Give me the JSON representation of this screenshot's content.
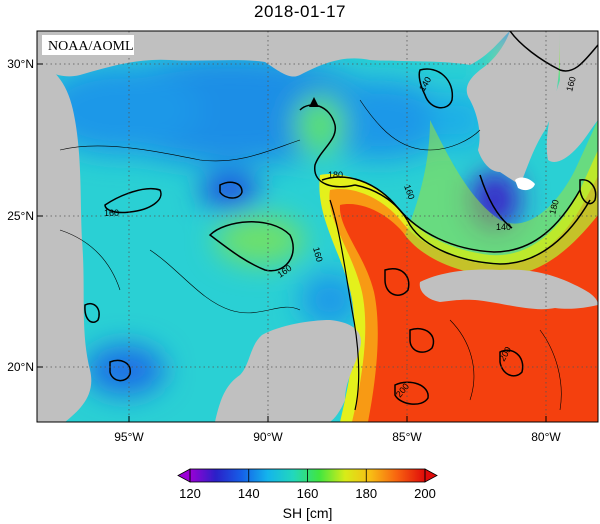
{
  "title": "2018-01-17",
  "credit": "NOAA/AOML",
  "map": {
    "lat_ticks": [
      "30°N",
      "25°N",
      "20°N"
    ],
    "lon_ticks": [
      "95°W",
      "90°W",
      "85°W",
      "80°W"
    ],
    "contour_labels": [
      "140",
      "160",
      "160",
      "160",
      "160",
      "180",
      "160",
      "180",
      "140",
      "200",
      "200"
    ],
    "marker": "buoy-triangle"
  },
  "colorbar": {
    "ticks": [
      "120",
      "140",
      "160",
      "180",
      "200"
    ],
    "unit": "SH [cm]",
    "colors": [
      "#9b00d6",
      "#2a20c8",
      "#1560e8",
      "#14b4ec",
      "#22d8bc",
      "#40e640",
      "#d8ec18",
      "#f8bc14",
      "#f86410",
      "#e00a0a"
    ]
  },
  "colors": {
    "land": "#c0c0c0",
    "frame": "#000000",
    "grid": "#555555"
  }
}
